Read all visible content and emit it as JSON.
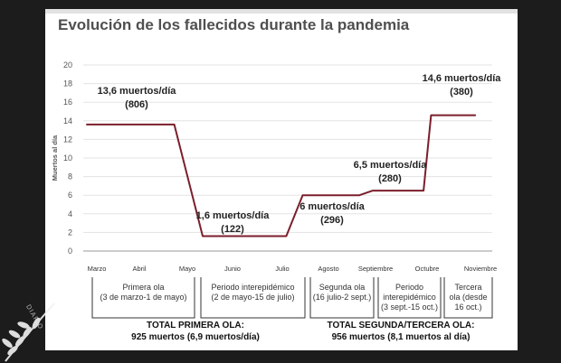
{
  "chart_data": {
    "type": "line",
    "title": "Evolución de los fallecidos durante la pandemia",
    "ylabel": "Muertos al día",
    "ylim": [
      0,
      20
    ],
    "yticks": [
      0,
      2,
      4,
      6,
      8,
      10,
      12,
      14,
      16,
      18,
      20
    ],
    "grid": true,
    "x_tick_labels": [
      "Marzo",
      "Abril",
      "Mayo",
      "Junio",
      "Julio",
      "Agosto",
      "Septiembre",
      "Octubre",
      "Noviembre"
    ],
    "series": [
      {
        "color": "#7b1f2b",
        "points": [
          [
            "2020-03-03",
            13.6
          ],
          [
            "2020-05-01",
            13.6
          ],
          [
            "2020-05-20",
            1.6
          ],
          [
            "2020-07-15",
            1.6
          ],
          [
            "2020-07-26",
            6.0
          ],
          [
            "2020-09-02",
            6.0
          ],
          [
            "2020-09-11",
            6.5
          ],
          [
            "2020-10-15",
            6.5
          ],
          [
            "2020-10-20",
            14.6
          ],
          [
            "2020-11-19",
            14.6
          ]
        ]
      }
    ],
    "annotations": [
      {
        "line1": "13,6 muertos/día",
        "line2": "(806)"
      },
      {
        "line1": "1,6 muertos/día",
        "line2": "(122)"
      },
      {
        "line1": "6 muertos/día",
        "line2": "(296)"
      },
      {
        "line1": "6,5 muertos/día",
        "line2": "(280)"
      },
      {
        "line1": "14,6 muertos/día",
        "line2": "(380)"
      }
    ],
    "periods": [
      {
        "label": "Primera ola",
        "dates": "(3 de marzo-1 de mayo)"
      },
      {
        "label": "Periodo interepidémico",
        "dates": "(2 de mayo-15 de julio)"
      },
      {
        "label": "Segunda ola",
        "dates": "(16 julio-2 sept.)"
      },
      {
        "label": "Periodo",
        "dates": "interepidémico",
        "dates2": "(3 sept.-15 oct.)"
      },
      {
        "label": "Tercera",
        "dates": "ola (desde",
        "dates2": "16 oct.)"
      }
    ],
    "totals": [
      {
        "title": "TOTAL PRIMERA OLA:",
        "value": "925 muertos (6,9 muertos/día)"
      },
      {
        "title": "TOTAL SEGUNDA/TERCERA OLA:",
        "value": "956 muertos (8,1 muertos al día)"
      }
    ]
  },
  "colors": {
    "line": "#7b1f2b",
    "background": "#1c1c1c",
    "panel": "#ffffff"
  },
  "watermark": {
    "text": "DIARIO"
  }
}
